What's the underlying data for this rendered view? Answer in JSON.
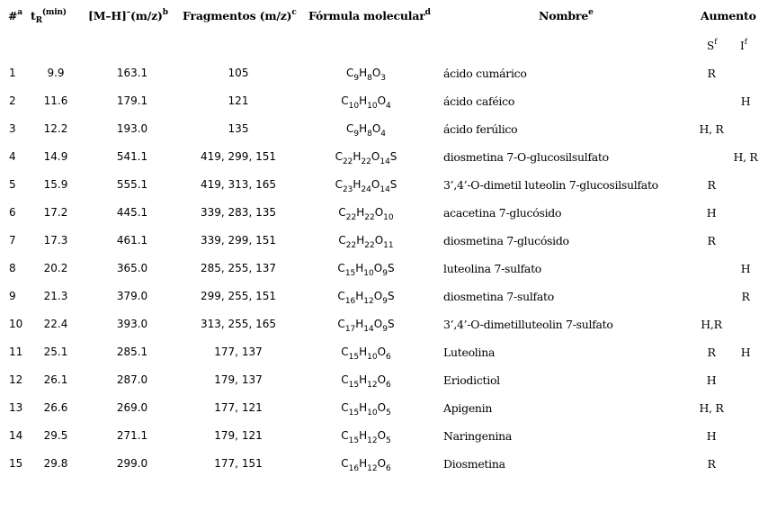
{
  "table": {
    "headers": {
      "num": {
        "text": "#",
        "sup": "a"
      },
      "tr": {
        "t": "t",
        "sub": "R",
        "sup": "(min)"
      },
      "mh": {
        "text": "[M–H]",
        "sup_minus": "–",
        "text2": "(m/z)",
        "sup": "b"
      },
      "frag": {
        "text": "Fragmentos (m/z)",
        "sup": "c"
      },
      "formula": {
        "text": "Fórmula molecular",
        "sup": "d"
      },
      "name": {
        "text": "Nombre",
        "sup": "e"
      },
      "aumento": {
        "text": "Aumento"
      },
      "s": {
        "text": "S",
        "sup": "f"
      },
      "i": {
        "text": "I",
        "sup": "f"
      }
    },
    "rows": [
      {
        "num": "1",
        "tr": "9.9",
        "mh": "163.1",
        "frag": "105",
        "formula": [
          [
            "C",
            "9"
          ],
          [
            "H",
            "8"
          ],
          [
            "O",
            "3"
          ]
        ],
        "name": "ácido cumárico",
        "s": "R",
        "i": ""
      },
      {
        "num": "2",
        "tr": "11.6",
        "mh": "179.1",
        "frag": "121",
        "formula": [
          [
            "C",
            "10"
          ],
          [
            "H",
            "10"
          ],
          [
            "O",
            "4"
          ]
        ],
        "name": "ácido caféico",
        "s": "",
        "i": "H"
      },
      {
        "num": "3",
        "tr": "12.2",
        "mh": "193.0",
        "frag": "135",
        "formula": [
          [
            "C",
            "9"
          ],
          [
            "H",
            "8"
          ],
          [
            "O",
            "4"
          ]
        ],
        "name": "ácido ferúlico",
        "s": "H, R",
        "i": ""
      },
      {
        "num": "4",
        "tr": "14.9",
        "mh": "541.1",
        "frag": "419, 299, 151",
        "formula": [
          [
            "C",
            "22"
          ],
          [
            "H",
            "22"
          ],
          [
            "O",
            "14"
          ],
          [
            "S",
            ""
          ]
        ],
        "name": "diosmetina 7-O-glucosilsulfato",
        "s": "",
        "i": "H, R"
      },
      {
        "num": "5",
        "tr": "15.9",
        "mh": "555.1",
        "frag": "419, 313, 165",
        "formula": [
          [
            "C",
            "23"
          ],
          [
            "H",
            "24"
          ],
          [
            "O",
            "14"
          ],
          [
            "S",
            ""
          ]
        ],
        "name": "3’,4’-O-dimetil luteolin 7-glucosilsulfato",
        "s": "R",
        "i": ""
      },
      {
        "num": "6",
        "tr": "17.2",
        "mh": "445.1",
        "frag": "339, 283, 135",
        "formula": [
          [
            "C",
            "22"
          ],
          [
            "H",
            "22"
          ],
          [
            "O",
            "10"
          ]
        ],
        "name": "acacetina 7-glucósido",
        "s": "H",
        "i": ""
      },
      {
        "num": "7",
        "tr": "17.3",
        "mh": "461.1",
        "frag": "339, 299, 151",
        "formula": [
          [
            "C",
            "22"
          ],
          [
            "H",
            "22"
          ],
          [
            "O",
            "11"
          ]
        ],
        "name": "diosmetina 7-glucósido",
        "s": "R",
        "i": ""
      },
      {
        "num": "8",
        "tr": "20.2",
        "mh": "365.0",
        "frag": "285, 255, 137",
        "formula": [
          [
            "C",
            "15"
          ],
          [
            "H",
            "10"
          ],
          [
            "O",
            "9"
          ],
          [
            "S",
            ""
          ]
        ],
        "name": "luteolina 7-sulfato",
        "s": "",
        "i": "H"
      },
      {
        "num": "9",
        "tr": "21.3",
        "mh": "379.0",
        "frag": "299, 255, 151",
        "formula": [
          [
            "C",
            "16"
          ],
          [
            "H",
            "12"
          ],
          [
            "O",
            "9"
          ],
          [
            "S",
            ""
          ]
        ],
        "name": "diosmetina 7-sulfato",
        "s": "",
        "i": "R"
      },
      {
        "num": "10",
        "tr": "22.4",
        "mh": "393.0",
        "frag": "313, 255, 165",
        "formula": [
          [
            "C",
            "17"
          ],
          [
            "H",
            "14"
          ],
          [
            "O",
            "9"
          ],
          [
            "S",
            ""
          ]
        ],
        "name": "3’,4’-O-dimetilluteolin 7-sulfato",
        "s": "H,R",
        "i": ""
      },
      {
        "num": "11",
        "tr": "25.1",
        "mh": "285.1",
        "frag": "177, 137",
        "formula": [
          [
            "C",
            "15"
          ],
          [
            "H",
            "10"
          ],
          [
            "O",
            "6"
          ]
        ],
        "name": "Luteolina",
        "s": "R",
        "i": "H"
      },
      {
        "num": "12",
        "tr": "26.1",
        "mh": "287.0",
        "frag": "179, 137",
        "formula": [
          [
            "C",
            "15"
          ],
          [
            "H",
            "12"
          ],
          [
            "O",
            "6"
          ]
        ],
        "name": "Eriodictiol",
        "s": "H",
        "i": ""
      },
      {
        "num": "13",
        "tr": "26.6",
        "mh": "269.0",
        "frag": "177, 121",
        "formula": [
          [
            "C",
            "15"
          ],
          [
            "H",
            "10"
          ],
          [
            "O",
            "5"
          ]
        ],
        "name": "Apigenin",
        "s": "H, R",
        "i": ""
      },
      {
        "num": "14",
        "tr": "29.5",
        "mh": "271.1",
        "frag": "179, 121",
        "formula": [
          [
            "C",
            "15"
          ],
          [
            "H",
            "12"
          ],
          [
            "O",
            "5"
          ]
        ],
        "name": "Naringenina",
        "s": "H",
        "i": ""
      },
      {
        "num": "15",
        "tr": "29.8",
        "mh": "299.0",
        "frag": "177, 151",
        "formula": [
          [
            "C",
            "16"
          ],
          [
            "H",
            "12"
          ],
          [
            "O",
            "6"
          ]
        ],
        "name": "Diosmetina",
        "s": "R",
        "i": ""
      }
    ]
  }
}
